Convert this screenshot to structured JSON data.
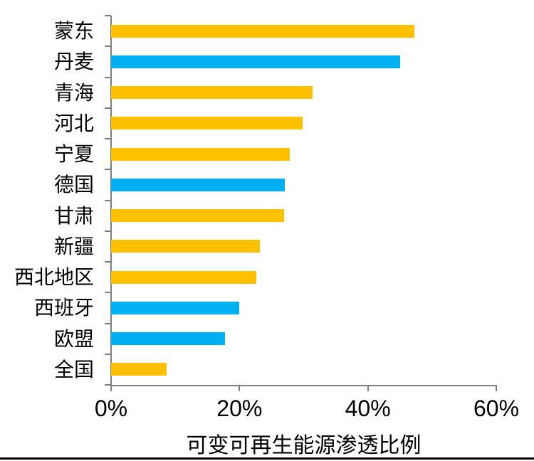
{
  "chart_data": {
    "type": "bar",
    "orientation": "horizontal",
    "title": "",
    "xlabel": "可变可再生能源渗透比例",
    "ylabel": "",
    "xlim": [
      0,
      60
    ],
    "x_tick_values": [
      0,
      20,
      40,
      60
    ],
    "x_tick_labels": [
      "0%",
      "20%",
      "40%",
      "60%"
    ],
    "grid": false,
    "legend_position": "none",
    "bars": [
      {
        "category": "蒙东",
        "value": 47.3,
        "color": "#FFC000"
      },
      {
        "category": "丹麦",
        "value": 45.0,
        "color": "#00B0F0"
      },
      {
        "category": "青海",
        "value": 31.4,
        "color": "#FFC000"
      },
      {
        "category": "河北",
        "value": 29.8,
        "color": "#FFC000"
      },
      {
        "category": "宁夏",
        "value": 27.8,
        "color": "#FFC000"
      },
      {
        "category": "德国",
        "value": 27.1,
        "color": "#00B0F0"
      },
      {
        "category": "甘肃",
        "value": 27.0,
        "color": "#FFC000"
      },
      {
        "category": "新疆",
        "value": 23.2,
        "color": "#FFC000"
      },
      {
        "category": "西北地区",
        "value": 22.6,
        "color": "#FFC000"
      },
      {
        "category": "西班牙",
        "value": 20.0,
        "color": "#00B0F0"
      },
      {
        "category": "欧盟",
        "value": 17.8,
        "color": "#00B0F0"
      },
      {
        "category": "全国",
        "value": 8.7,
        "color": "#FFC000"
      }
    ],
    "colors": {
      "series_yellow": "#FFC000",
      "series_blue": "#00B0F0",
      "axis": "#7F7F7F",
      "bottom_rule": "#000000"
    }
  }
}
